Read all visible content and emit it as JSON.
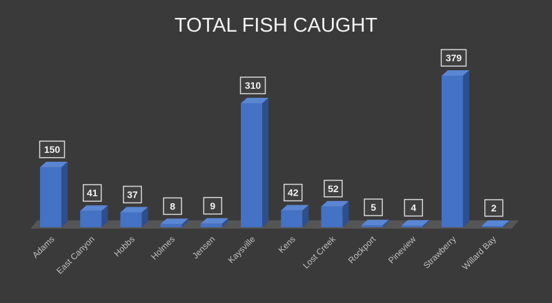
{
  "chart_data": {
    "type": "bar",
    "title": "TOTAL FISH CAUGHT",
    "categories": [
      "Adams",
      "East Canyon",
      "Hobbs",
      "Holmes",
      "Jensen",
      "Kaysville",
      "Kens",
      "Lost Creek",
      "Rockport",
      "Pineview",
      "Strawberry",
      "Willard Bay"
    ],
    "values": [
      150,
      41,
      37,
      8,
      9,
      310,
      42,
      52,
      5,
      4,
      379,
      2
    ],
    "xlabel": "",
    "ylabel": "",
    "ylim": [
      0,
      400
    ],
    "grid": false,
    "legend": "none",
    "data_labels": true
  },
  "colors": {
    "background": "#3a3a3a",
    "bar_front": "#4472c4",
    "bar_side": "#2e4f8f",
    "bar_top": "#5b86d4",
    "floor": "#555555",
    "text": "#e8e8e8",
    "label_box": "#404040"
  }
}
